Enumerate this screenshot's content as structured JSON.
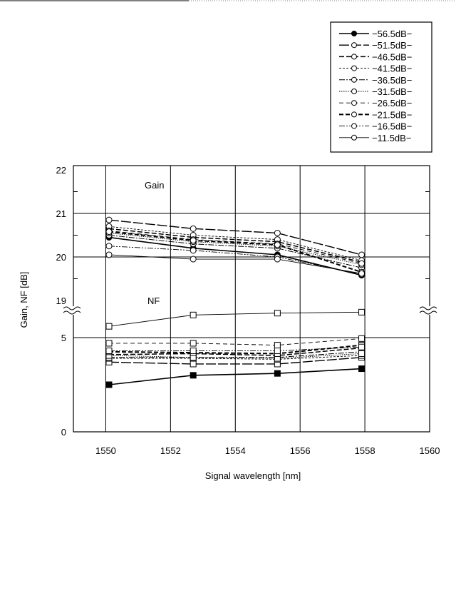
{
  "chart_data": {
    "type": "line",
    "x": [
      1550.1,
      1552.7,
      1555.3,
      1557.9
    ],
    "xlabel": "Signal wavelength [nm]",
    "ylabel": "Gain, NF [dB]",
    "xlim": [
      1549,
      1560
    ],
    "xticks": [
      "1550",
      "1552",
      "1554",
      "1556",
      "1558",
      "1560"
    ],
    "ylim_note": "broken axis: 0–5 and 19–22",
    "yticks_lower": [
      "0",
      "5"
    ],
    "yticks_upper": [
      "19",
      "20",
      "21",
      "22"
    ],
    "grid": true,
    "legend_position": "top-right",
    "annotations": [
      "Gain",
      "NF"
    ],
    "gain_series": [
      {
        "name": "−56.5dB−",
        "values": [
          20.45,
          20.2,
          20.05,
          19.58
        ]
      },
      {
        "name": "−51.5dB−",
        "values": [
          20.85,
          20.65,
          20.55,
          20.05
        ]
      },
      {
        "name": "−46.5dB−",
        "values": [
          20.65,
          20.45,
          20.35,
          19.88
        ]
      },
      {
        "name": "−41.5dB−",
        "values": [
          20.7,
          20.5,
          20.4,
          19.92
        ]
      },
      {
        "name": "−36.5dB−",
        "values": [
          20.5,
          20.3,
          20.2,
          19.75
        ]
      },
      {
        "name": "−31.5dB−",
        "values": [
          20.55,
          20.35,
          20.25,
          19.82
        ]
      },
      {
        "name": "−26.5dB−",
        "values": [
          20.6,
          20.4,
          20.3,
          19.85
        ]
      },
      {
        "name": "−21.5dB−",
        "values": [
          20.58,
          20.38,
          20.28,
          19.65
        ]
      },
      {
        "name": "−16.5dB−",
        "values": [
          20.25,
          20.15,
          20.0,
          19.6
        ]
      },
      {
        "name": "−11.5dB−",
        "values": [
          20.05,
          19.95,
          19.95,
          19.62
        ]
      }
    ],
    "nf_series": [
      {
        "name": "−56.5dB−",
        "values": [
          2.5,
          3.0,
          3.1,
          3.35
        ]
      },
      {
        "name": "−51.5dB−",
        "values": [
          3.7,
          3.6,
          3.6,
          3.95
        ]
      },
      {
        "name": "−46.5dB−",
        "values": [
          4.1,
          4.15,
          4.05,
          4.45
        ]
      },
      {
        "name": "−41.5dB−",
        "values": [
          3.9,
          3.9,
          3.85,
          4.05
        ]
      },
      {
        "name": "−36.5dB−",
        "values": [
          3.95,
          3.95,
          3.95,
          4.25
        ]
      },
      {
        "name": "−31.5dB−",
        "values": [
          4.05,
          3.95,
          3.9,
          4.15
        ]
      },
      {
        "name": "−26.5dB−",
        "values": [
          4.7,
          4.7,
          4.6,
          4.95
        ]
      },
      {
        "name": "−21.5dB−",
        "values": [
          4.25,
          4.2,
          4.15,
          4.6
        ]
      },
      {
        "name": "−16.5dB−",
        "values": [
          4.3,
          4.3,
          4.3,
          4.5
        ]
      },
      {
        "name": "−11.5dB−",
        "values": [
          5.6,
          6.2,
          6.3,
          6.35
        ]
      }
    ],
    "colors": {
      "line": "#000000",
      "background": "#ffffff"
    }
  }
}
